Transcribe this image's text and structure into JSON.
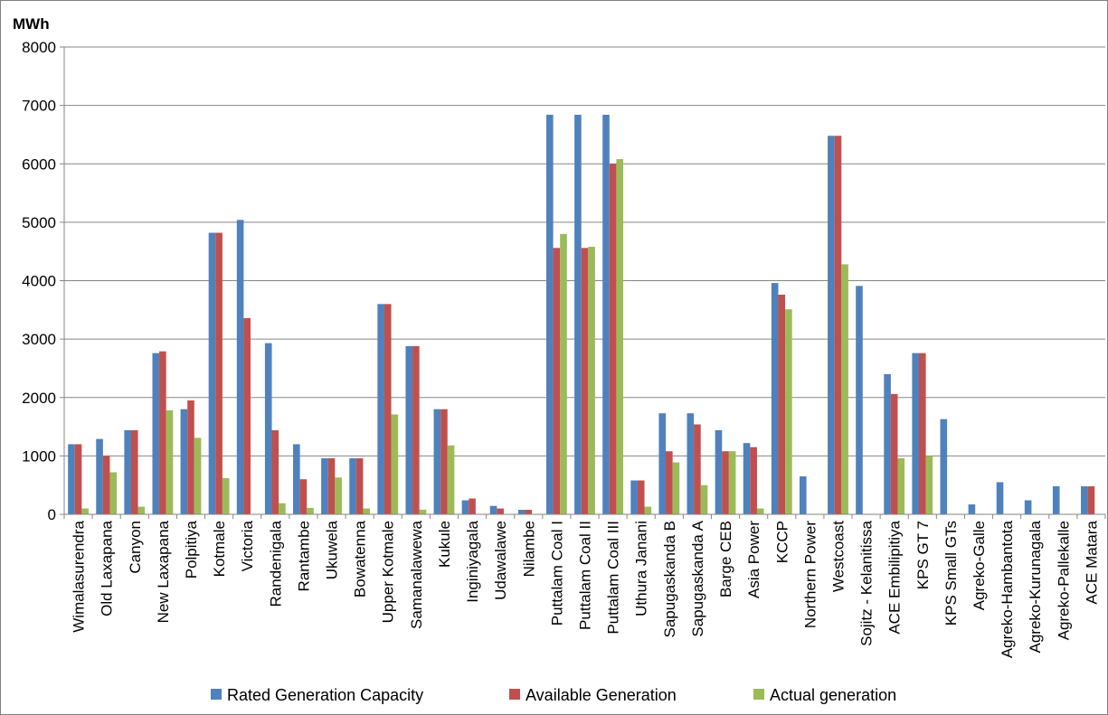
{
  "chart_data": {
    "type": "bar",
    "ylabel": "MWh",
    "xlabel": "",
    "ylim": [
      0,
      8000
    ],
    "yticks": [
      0,
      1000,
      2000,
      3000,
      4000,
      5000,
      6000,
      7000,
      8000
    ],
    "grid": true,
    "legend_position": "bottom",
    "categories": [
      "Wimalasurendra",
      "Old Laxapana",
      "Canyon",
      "New Laxapana",
      "Polpitiya",
      "Kotmale",
      "Victoria",
      "Randenigala",
      "Rantambe",
      "Ukuwela",
      "Bowatenna",
      "Upper Kotmale",
      "Samanalawewa",
      "Kukule",
      "Inginiyagala",
      "Udawalawe",
      "Nilambe",
      "Puttalam Coal I",
      "Puttalam Coal II",
      "Puttalam Coal III",
      "Uthura Janani",
      "Sapugaskanda B",
      "Sapugaskanda A",
      "Barge CEB",
      "Asia Power",
      "KCCP",
      "Northern Power",
      "Westcoast",
      "Sojitz - Kelanitissa",
      "ACE Embilipitiya",
      "KPS GT 7",
      "KPS Small GTs",
      "Agreko-Galle",
      "Agreko-Hambantota",
      "Agreko-Kurunagala",
      "Agreko-Pallekalle",
      "ACE Matara"
    ],
    "series": [
      {
        "name": "Rated Generation Capacity",
        "color": "#4f81bd",
        "values": [
          1200,
          1290,
          1440,
          2760,
          1800,
          4820,
          5040,
          2930,
          1200,
          960,
          960,
          3600,
          2880,
          1800,
          240,
          144,
          77,
          6840,
          6840,
          6840,
          580,
          1730,
          1730,
          1440,
          1220,
          3960,
          650,
          6480,
          3910,
          2400,
          2760,
          1630,
          170,
          550,
          240,
          480,
          480
        ]
      },
      {
        "name": "Available Generation",
        "color": "#c0504d",
        "values": [
          1200,
          1000,
          1440,
          2790,
          1950,
          4820,
          3360,
          1440,
          600,
          960,
          960,
          3600,
          2880,
          1800,
          270,
          100,
          77,
          4560,
          4560,
          6000,
          580,
          1080,
          1540,
          1080,
          1150,
          3760,
          0,
          6480,
          0,
          2060,
          2760,
          0,
          0,
          0,
          0,
          0,
          480
        ]
      },
      {
        "name": "Actual generation",
        "color": "#9bbb59",
        "values": [
          100,
          720,
          130,
          1780,
          1310,
          620,
          0,
          190,
          110,
          630,
          100,
          1710,
          80,
          1180,
          0,
          0,
          0,
          4800,
          4580,
          6080,
          130,
          890,
          500,
          1080,
          100,
          3510,
          0,
          4280,
          0,
          960,
          1000,
          0,
          0,
          0,
          0,
          0,
          0
        ]
      }
    ]
  }
}
